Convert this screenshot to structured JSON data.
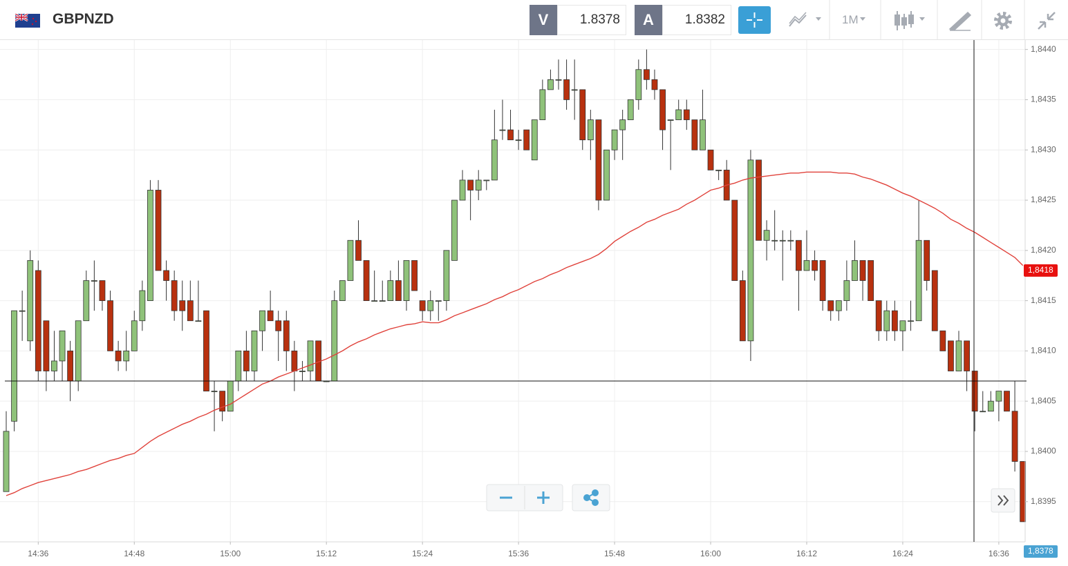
{
  "header": {
    "bid_label": "V",
    "bid": "1.8378",
    "ask_label": "A",
    "ask": "1.8382",
    "timeframe": "1M"
  },
  "chart_data": {
    "type": "candlestick",
    "title": "GBPNZD",
    "categories": [
      null,
      null,
      null,
      null,
      "14:36",
      null,
      null,
      null,
      null,
      null,
      null,
      null,
      null,
      null,
      null,
      null,
      "14:48",
      null,
      null,
      null,
      null,
      null,
      null,
      null,
      null,
      null,
      null,
      null,
      "15:00",
      null,
      null,
      null,
      null,
      null,
      null,
      null,
      null,
      null,
      null,
      null,
      "15:12",
      null,
      null,
      null,
      null,
      null,
      null,
      null,
      null,
      null,
      null,
      null,
      "15:24",
      null,
      null,
      null,
      null,
      null,
      null,
      null,
      null,
      null,
      null,
      null,
      "15:36",
      null,
      null,
      null,
      null,
      null,
      null,
      null,
      null,
      null,
      null,
      null,
      "15:48",
      null,
      null,
      null,
      null,
      null,
      null,
      null,
      null,
      null,
      null,
      null,
      "16:00",
      null,
      null,
      null,
      null,
      null,
      null,
      null,
      null,
      null,
      null,
      null,
      "16:12",
      null,
      null,
      null,
      null,
      null,
      null,
      null,
      null,
      null,
      null,
      null,
      "16:24",
      null,
      null,
      null,
      null,
      null,
      null,
      null,
      null,
      null,
      null,
      null,
      "16:36",
      null,
      null,
      null
    ],
    "open": [
      1.8396,
      1.8403,
      1.8414,
      1.8411,
      1.8418,
      1.8413,
      1.8408,
      1.8409,
      1.841,
      1.8407,
      1.8413,
      1.8417,
      1.8417,
      1.8415,
      1.841,
      1.8409,
      1.841,
      1.8413,
      1.8415,
      1.8426,
      1.8418,
      1.8417,
      1.8415,
      1.8415,
      1.8413,
      1.8414,
      1.8406,
      1.8406,
      1.8404,
      1.8407,
      1.841,
      1.8408,
      1.8412,
      1.8414,
      1.8413,
      1.8413,
      1.841,
      1.8408,
      1.8408,
      1.8411,
      1.8407,
      1.8407,
      1.8415,
      1.8417,
      1.8421,
      1.8419,
      1.8415,
      1.8415,
      1.8415,
      1.8417,
      1.8415,
      1.8419,
      1.8415,
      1.8414,
      1.8415,
      1.8415,
      1.8419,
      1.8425,
      1.8427,
      1.8426,
      1.8427,
      1.8427,
      1.8432,
      1.8432,
      1.8431,
      1.8432,
      1.8429,
      1.8433,
      1.8436,
      1.8437,
      1.8437,
      1.8436,
      1.8436,
      1.8431,
      1.8433,
      1.8425,
      1.843,
      1.8432,
      1.8433,
      1.8435,
      1.8438,
      1.8437,
      1.8436,
      1.8433,
      1.8433,
      1.8434,
      1.8433,
      1.843,
      1.843,
      1.8428,
      1.8428,
      1.8425,
      1.8417,
      1.8411,
      1.8429,
      1.8421,
      1.8421,
      1.8421,
      1.8421,
      1.8421,
      1.8418,
      1.8419,
      1.8419,
      1.8415,
      1.8414,
      1.8415,
      1.8417,
      1.8419,
      1.8419,
      1.8415,
      1.8412,
      1.8414,
      1.8412,
      1.8413,
      1.8413,
      1.8421,
      1.8418,
      1.8412,
      1.8411,
      1.8408,
      1.8411,
      1.8408,
      1.8404,
      1.8404,
      1.8405,
      1.8406,
      1.8404,
      1.8399
    ],
    "high": [
      1.8404,
      1.8414,
      1.8416,
      1.842,
      1.8419,
      1.8413,
      1.8412,
      1.8412,
      1.8411,
      1.8413,
      1.8418,
      1.8419,
      1.8417,
      1.8416,
      1.8411,
      1.8412,
      1.8414,
      1.8417,
      1.8427,
      1.8427,
      1.8419,
      1.8418,
      1.8417,
      1.8417,
      1.8417,
      1.8414,
      1.8407,
      1.8406,
      1.8407,
      1.841,
      1.8412,
      1.8412,
      1.8414,
      1.8416,
      1.8414,
      1.8414,
      1.8411,
      1.8409,
      1.8411,
      1.8411,
      1.8407,
      1.8416,
      1.8417,
      1.8421,
      1.8423,
      1.8419,
      1.8418,
      1.8417,
      1.8418,
      1.8419,
      1.8419,
      1.8419,
      1.8415,
      1.8416,
      1.8415,
      1.842,
      1.8425,
      1.8428,
      1.8427,
      1.8428,
      1.8427,
      1.8434,
      1.8435,
      1.8434,
      1.8432,
      1.8432,
      1.8433,
      1.8437,
      1.8438,
      1.8439,
      1.8439,
      1.8439,
      1.8436,
      1.8434,
      1.8433,
      1.843,
      1.8432,
      1.8434,
      1.8435,
      1.8439,
      1.844,
      1.8438,
      1.8436,
      1.8433,
      1.8435,
      1.8435,
      1.8433,
      1.8436,
      1.843,
      1.8428,
      1.8429,
      1.8425,
      1.8418,
      1.843,
      1.8429,
      1.8423,
      1.8424,
      1.8422,
      1.8422,
      1.8421,
      1.8422,
      1.842,
      1.8419,
      1.8415,
      1.8415,
      1.8419,
      1.8421,
      1.8419,
      1.8419,
      1.8415,
      1.8415,
      1.8415,
      1.8413,
      1.8415,
      1.8425,
      1.8421,
      1.8418,
      1.8412,
      1.8411,
      1.8412,
      1.8411,
      1.8408,
      1.8406,
      1.8406,
      1.8406,
      1.8406,
      1.8407,
      1.8399
    ],
    "low": [
      1.8396,
      1.8402,
      1.8411,
      1.841,
      1.8407,
      1.8406,
      1.8407,
      1.8407,
      1.8405,
      1.8406,
      1.8413,
      1.8414,
      1.8414,
      1.841,
      1.8408,
      1.8408,
      1.841,
      1.8412,
      1.8415,
      1.8418,
      1.8415,
      1.8413,
      1.8412,
      1.8413,
      1.8413,
      1.8406,
      1.8402,
      1.8403,
      1.8404,
      1.8406,
      1.8407,
      1.8407,
      1.841,
      1.8413,
      1.8409,
      1.8408,
      1.8406,
      1.8407,
      1.8407,
      1.8407,
      1.8407,
      1.8407,
      1.8415,
      1.8417,
      1.8419,
      1.8415,
      1.8415,
      1.8415,
      1.8415,
      1.8415,
      1.8414,
      1.8416,
      1.8413,
      1.8413,
      1.8413,
      1.8414,
      1.8419,
      1.8425,
      1.8423,
      1.8425,
      1.8426,
      1.8427,
      1.8431,
      1.8431,
      1.843,
      1.843,
      1.8429,
      1.8433,
      1.8436,
      1.8436,
      1.8434,
      1.8433,
      1.843,
      1.8429,
      1.8424,
      1.8425,
      1.8429,
      1.8429,
      1.8433,
      1.8434,
      1.8436,
      1.8435,
      1.843,
      1.8428,
      1.8433,
      1.8432,
      1.843,
      1.843,
      1.8428,
      1.8427,
      1.8425,
      1.8417,
      1.8411,
      1.8409,
      1.8421,
      1.8419,
      1.842,
      1.8417,
      1.842,
      1.8414,
      1.8418,
      1.8417,
      1.8414,
      1.8413,
      1.8413,
      1.8414,
      1.8417,
      1.8415,
      1.8415,
      1.8411,
      1.8411,
      1.8411,
      1.841,
      1.8412,
      1.8413,
      1.8416,
      1.8412,
      1.841,
      1.8408,
      1.8408,
      1.8406,
      1.8402,
      1.8404,
      1.8404,
      1.8403,
      1.8404,
      1.8398,
      1.8393
    ],
    "close": [
      1.8402,
      1.8414,
      1.8414,
      1.8419,
      1.8408,
      1.8408,
      1.8409,
      1.8412,
      1.8407,
      1.8413,
      1.8417,
      1.8417,
      1.8415,
      1.841,
      1.8409,
      1.841,
      1.8413,
      1.8416,
      1.8426,
      1.8418,
      1.8417,
      1.8414,
      1.8414,
      1.8413,
      1.8413,
      1.8406,
      1.8406,
      1.8404,
      1.8407,
      1.841,
      1.8408,
      1.8412,
      1.8414,
      1.8413,
      1.8412,
      1.841,
      1.8408,
      1.8408,
      1.8411,
      1.8407,
      1.8407,
      1.8415,
      1.8417,
      1.8421,
      1.8419,
      1.8415,
      1.8415,
      1.8415,
      1.8417,
      1.8415,
      1.8419,
      1.8416,
      1.8414,
      1.8415,
      1.8415,
      1.842,
      1.8425,
      1.8427,
      1.8426,
      1.8427,
      1.8427,
      1.8431,
      1.8432,
      1.8431,
      1.8431,
      1.843,
      1.8433,
      1.8436,
      1.8437,
      1.8437,
      1.8435,
      1.8436,
      1.8431,
      1.8433,
      1.8425,
      1.843,
      1.8432,
      1.8433,
      1.8435,
      1.8438,
      1.8437,
      1.8436,
      1.8432,
      1.8433,
      1.8434,
      1.8433,
      1.843,
      1.8433,
      1.8428,
      1.8428,
      1.8425,
      1.8417,
      1.8411,
      1.8429,
      1.8421,
      1.8422,
      1.8421,
      1.8421,
      1.8421,
      1.8418,
      1.8419,
      1.8418,
      1.8415,
      1.8414,
      1.8415,
      1.8417,
      1.8419,
      1.8417,
      1.8415,
      1.8412,
      1.8414,
      1.8412,
      1.8413,
      1.8413,
      1.8421,
      1.8417,
      1.8412,
      1.841,
      1.8408,
      1.8411,
      1.8408,
      1.8404,
      1.8404,
      1.8405,
      1.8406,
      1.8404,
      1.8399,
      1.8393
    ],
    "up_color": "#8fc27a",
    "down_color": "#b8310f",
    "moving_average": {
      "color": "#e0423b",
      "values": [
        1.83956,
        1.83959,
        1.83963,
        1.83966,
        1.83969,
        1.83971,
        1.83973,
        1.83975,
        1.83977,
        1.8398,
        1.83982,
        1.83985,
        1.83988,
        1.83991,
        1.83993,
        1.83996,
        1.83998,
        1.84004,
        1.8401,
        1.84015,
        1.84019,
        1.84023,
        1.84027,
        1.8403,
        1.84034,
        1.84037,
        1.84041,
        1.84044,
        1.84047,
        1.84052,
        1.84057,
        1.84062,
        1.84067,
        1.8407,
        1.84074,
        1.84077,
        1.8408,
        1.84083,
        1.84086,
        1.84089,
        1.84092,
        1.84096,
        1.841,
        1.84105,
        1.84109,
        1.84112,
        1.84116,
        1.84119,
        1.84122,
        1.84124,
        1.84126,
        1.84127,
        1.84129,
        1.84128,
        1.84128,
        1.84131,
        1.84135,
        1.84138,
        1.84141,
        1.84144,
        1.84147,
        1.84151,
        1.84154,
        1.84158,
        1.84161,
        1.84165,
        1.84169,
        1.84172,
        1.84176,
        1.84179,
        1.84183,
        1.84186,
        1.84189,
        1.84192,
        1.84196,
        1.84202,
        1.84209,
        1.84214,
        1.84219,
        1.84223,
        1.84228,
        1.84231,
        1.84235,
        1.84238,
        1.84241,
        1.84246,
        1.8425,
        1.84255,
        1.8426,
        1.84262,
        1.84265,
        1.84267,
        1.8427,
        1.84272,
        1.84273,
        1.84274,
        1.84275,
        1.84276,
        1.84277,
        1.84277,
        1.84278,
        1.84278,
        1.84278,
        1.84278,
        1.84277,
        1.84277,
        1.84276,
        1.84273,
        1.84271,
        1.84268,
        1.84265,
        1.84261,
        1.84257,
        1.84254,
        1.8425,
        1.84246,
        1.84242,
        1.84237,
        1.84231,
        1.84227,
        1.84222,
        1.84218,
        1.84213,
        1.84208,
        1.84203,
        1.84198,
        1.84193,
        1.84185
      ]
    },
    "price_labels": [
      {
        "value": 1.8418,
        "label": "1,8418",
        "color": "#e8110f"
      },
      {
        "value": 1.8378,
        "label": "1,8378",
        "color": "#4aa3d3"
      }
    ],
    "ylim": [
      1.8391,
      1.84408
    ],
    "yticks": [
      {
        "value": 1.8395,
        "label": "1,8395"
      },
      {
        "value": 1.84,
        "label": "1,8400"
      },
      {
        "value": 1.8405,
        "label": "1,8405"
      },
      {
        "value": 1.841,
        "label": "1,8410"
      },
      {
        "value": 1.8415,
        "label": "1,8415"
      },
      {
        "value": 1.842,
        "label": "1,8420"
      },
      {
        "value": 1.8425,
        "label": "1,8425"
      },
      {
        "value": 1.843,
        "label": "1,8430"
      },
      {
        "value": 1.8435,
        "label": "1,8435"
      },
      {
        "value": 1.844,
        "label": "1,8440"
      }
    ],
    "grid": true
  }
}
